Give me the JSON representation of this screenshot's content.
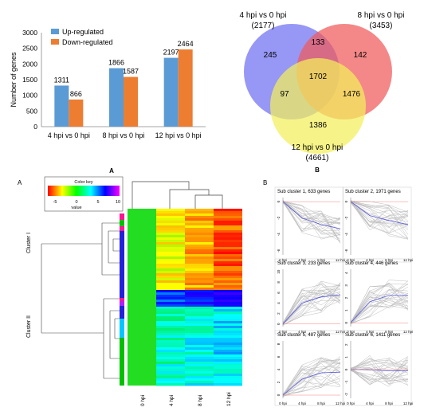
{
  "panel_labels": {
    "bar": "A",
    "venn": "B",
    "heat": "A",
    "clusters": "B"
  },
  "chart_data": [
    {
      "type": "bar",
      "categories": [
        "4 hpi vs 0 hpi",
        "8 hpi vs 0 hpi",
        "12 hpi vs 0 hpi"
      ],
      "series": [
        {
          "name": "Up-regulated",
          "values": [
            1311,
            1866,
            2197
          ],
          "color": "#5b9bd5"
        },
        {
          "name": "Down-regulated",
          "values": [
            866,
            1587,
            2464
          ],
          "color": "#ed7d31"
        }
      ],
      "ylabel": "Number of genes",
      "ylim": [
        0,
        3000
      ],
      "yticks": [
        0,
        500,
        1000,
        1500,
        2000,
        2500,
        3000
      ],
      "legend": "top-left",
      "grid": false
    },
    {
      "type": "venn",
      "sets": [
        {
          "label": "4 hpi vs 0 hpi",
          "total": "(2177)",
          "color": "#6f6ff2"
        },
        {
          "label": "8 hpi vs 0 hpi",
          "total": "(3453)",
          "color": "#f05a5a"
        },
        {
          "label": "12 hpi vs 0 hpi",
          "total": "(4661)",
          "color": "#f3f05a"
        }
      ],
      "regions": {
        "only_4": 245,
        "only_8": 142,
        "only_12": 1386,
        "4_8": 133,
        "4_12": 97,
        "8_12": 1476,
        "all": 1702
      }
    },
    {
      "type": "heatmap",
      "color_key": {
        "title": "Color key",
        "ticks": [
          "-5",
          "0",
          "5",
          "10"
        ],
        "xlabel": "value"
      },
      "columns": [
        "0 hpi",
        "4 hpi",
        "8 hpi",
        "12 hpi"
      ],
      "row_clusters": [
        "Cluster I",
        "Cluster II"
      ]
    },
    {
      "type": "line",
      "x": [
        "0 hpi",
        "4 hpi",
        "8 hpi",
        "12 hpi"
      ],
      "subplots": [
        {
          "title": "Sub cluster 1, 633 genes",
          "yticks": [
            "0",
            "-2",
            "-4",
            "-6"
          ],
          "ylim": [
            -6.5,
            0.5
          ],
          "mean": [
            0,
            -2,
            -2.8,
            -3.3
          ]
        },
        {
          "title": "Sub cluster 2, 1971 genes",
          "yticks": [
            "0",
            "-2",
            "-4",
            "-6"
          ],
          "ylim": [
            -6.5,
            0.5
          ],
          "mean": [
            0,
            -1.7,
            -2.3,
            -2.8
          ]
        },
        {
          "title": "Sub cluster 3, 233 genes",
          "yticks": [
            "10",
            "8",
            "6",
            "4",
            "2",
            "0"
          ],
          "ylim": [
            -0.5,
            10.5
          ],
          "mean": [
            0,
            4,
            5.2,
            5.6
          ]
        },
        {
          "title": "Sub cluster 4, 446 genes",
          "yticks": [
            "4",
            "3",
            "2",
            "1",
            "0"
          ],
          "ylim": [
            -0.3,
            4.3
          ],
          "mean": [
            0,
            1.7,
            2.2,
            2.2
          ]
        },
        {
          "title": "Sub cluster 5, 487 genes",
          "yticks": [
            "8",
            "6",
            "4",
            "2",
            "0"
          ],
          "ylim": [
            -0.5,
            8.5
          ],
          "mean": [
            0,
            2.5,
            3.5,
            3.6
          ]
        },
        {
          "title": "Sub cluster 6, 1411 genes",
          "yticks": [
            "2",
            "1",
            "0",
            "-1",
            "-2"
          ],
          "ylim": [
            -2.3,
            2.3
          ],
          "mean": [
            0,
            0,
            -0.1,
            -0.1
          ]
        }
      ]
    }
  ]
}
